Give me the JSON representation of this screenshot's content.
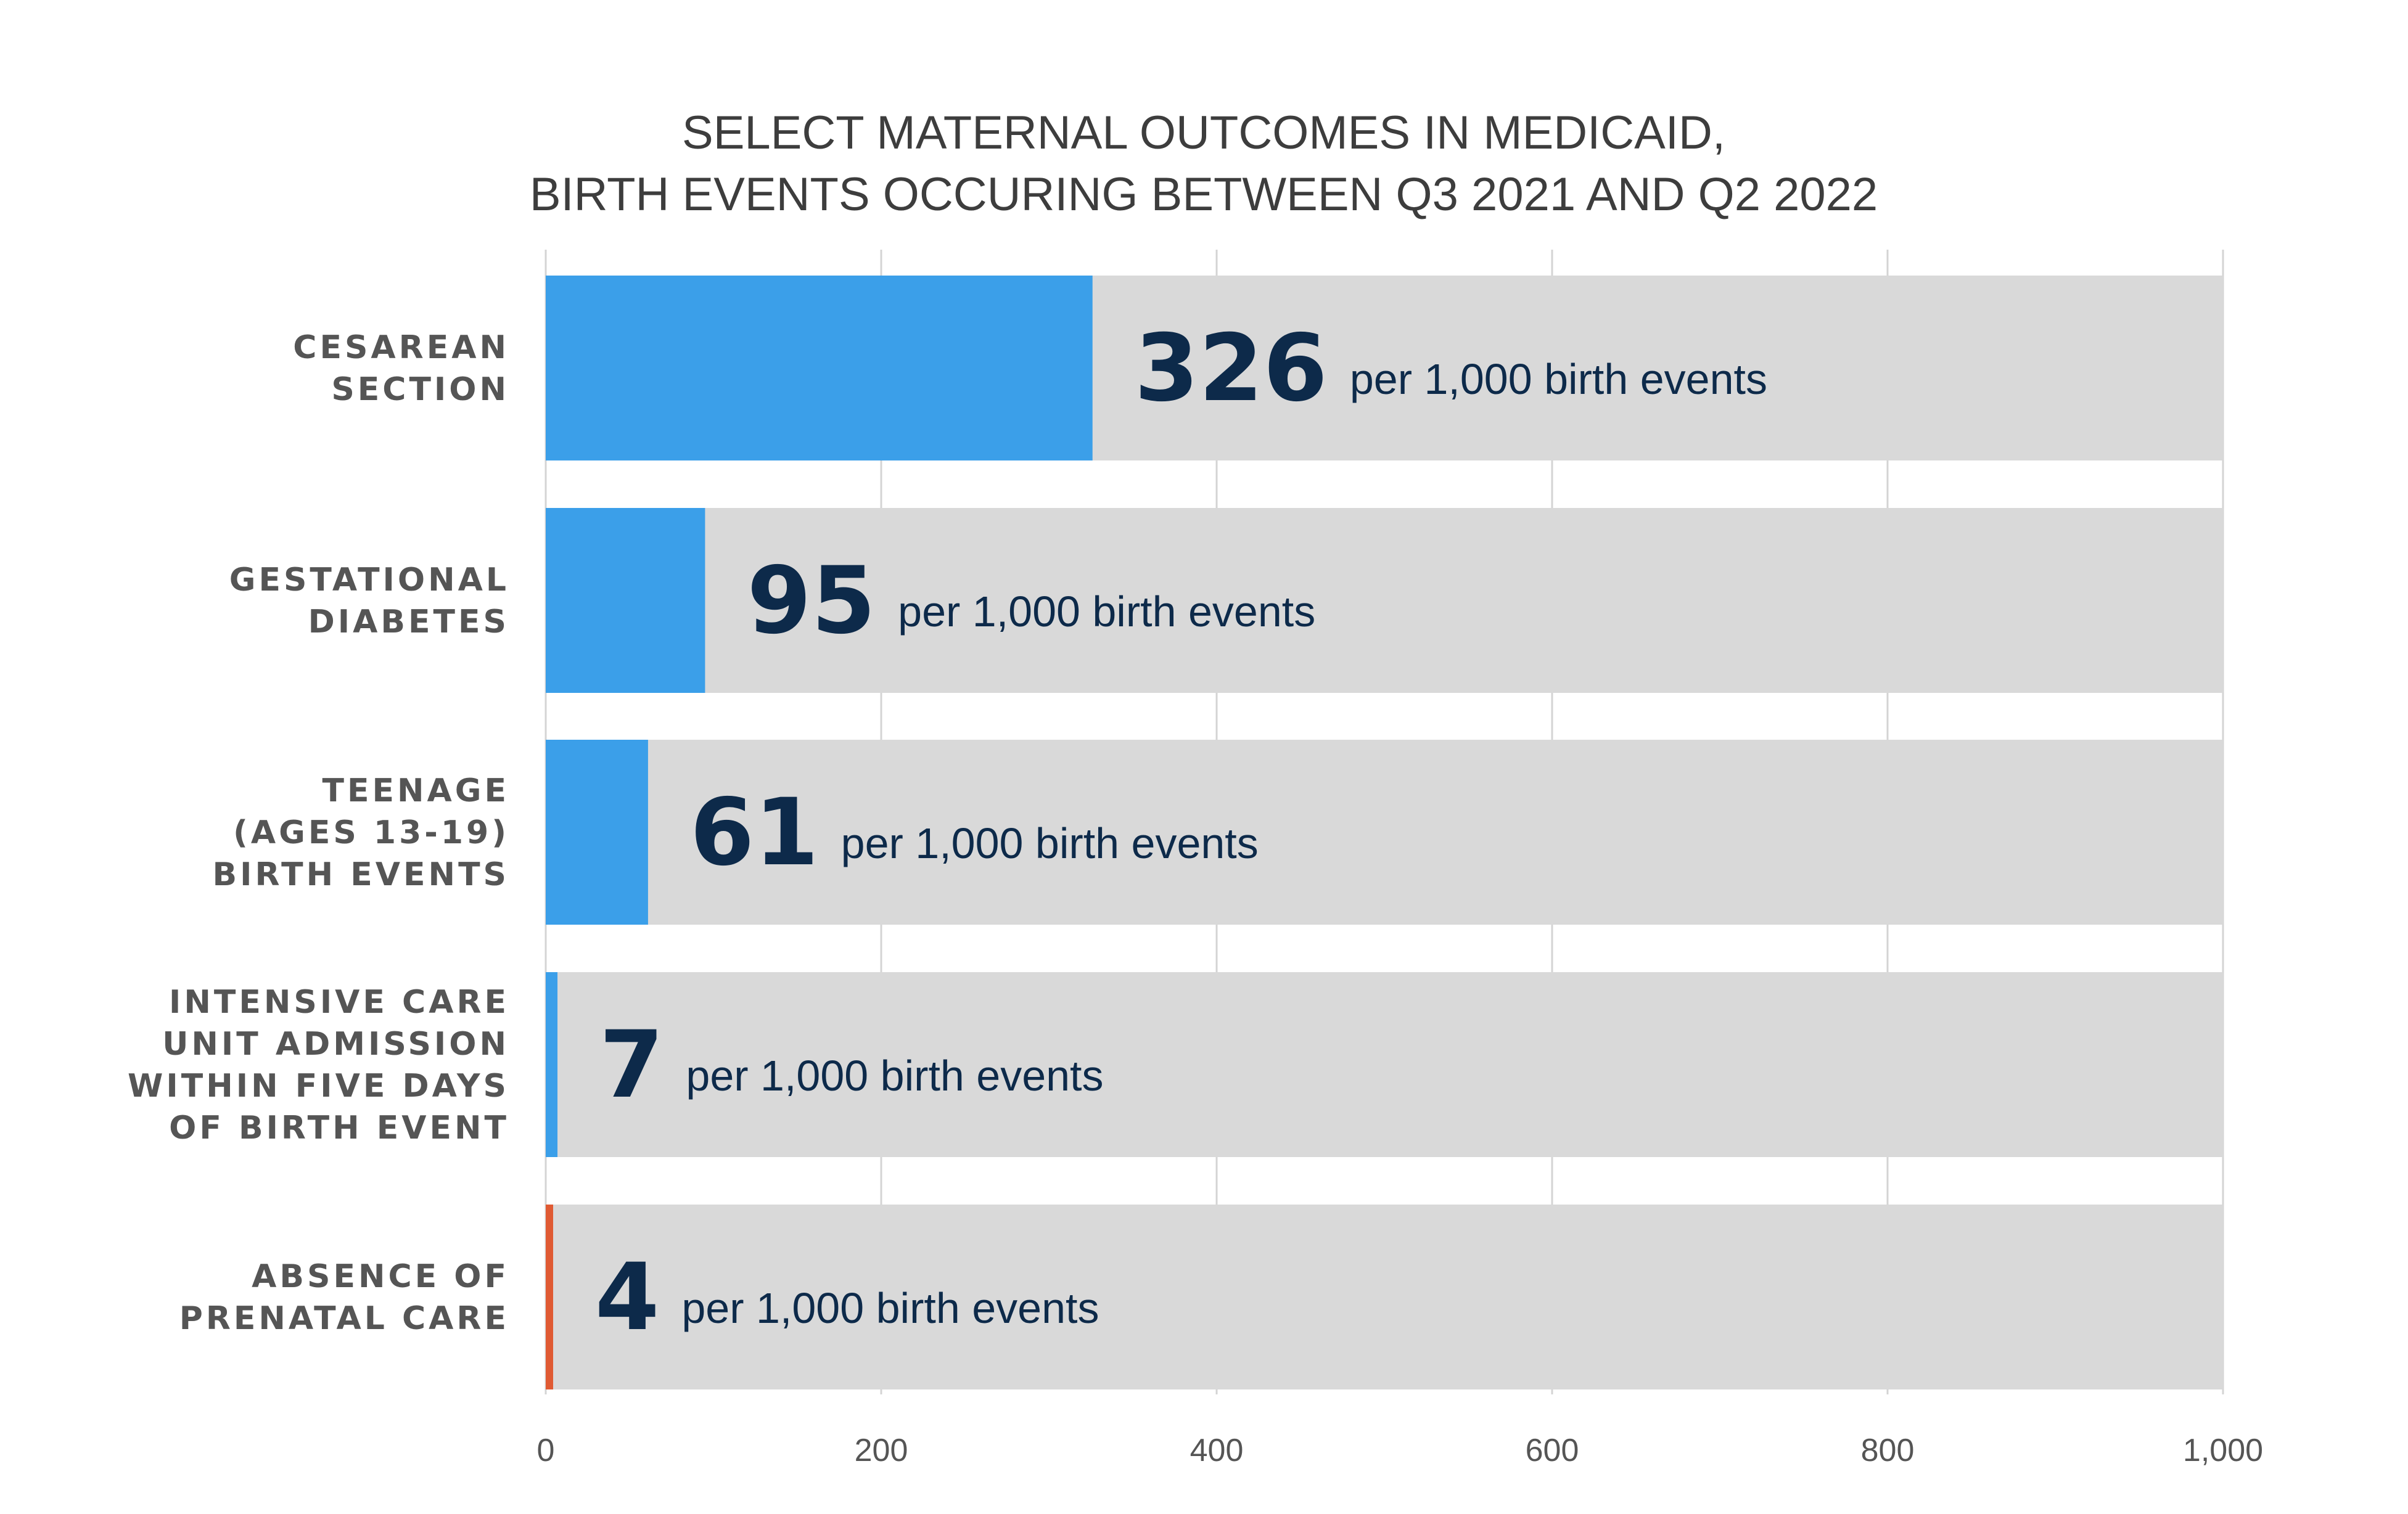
{
  "chart_data": {
    "type": "bar",
    "orientation": "horizontal",
    "title": [
      "SELECT MATERNAL OUTCOMES IN MEDICAID,",
      "BIRTH EVENTS OCCURING BETWEEN Q3 2021 AND Q2 2022"
    ],
    "categories": [
      [
        "CESAREAN",
        "SECTION"
      ],
      [
        "GESTATIONAL",
        "DIABETES"
      ],
      [
        "TEENAGE",
        "(AGES 13-19)",
        "BIRTH EVENTS"
      ],
      [
        "INTENSIVE CARE",
        "UNIT ADMISSION",
        "WITHIN FIVE DAYS",
        "OF BIRTH EVENT"
      ],
      [
        "ABSENCE OF",
        "PRENATAL CARE"
      ]
    ],
    "values": [
      326,
      95,
      61,
      7,
      4
    ],
    "value_labels": [
      "326",
      "95",
      "61",
      "7",
      "4"
    ],
    "value_unit": "per 1,000 birth events",
    "bar_colors": [
      "#3b9fe9",
      "#3b9fe9",
      "#3b9fe9",
      "#3b9fe9",
      "#e05a33"
    ],
    "track_color": "#d9d9d9",
    "label_color": "#0d2a4a",
    "xlim": [
      0,
      1000
    ],
    "xticks": [
      0,
      200,
      400,
      600,
      800,
      1000
    ],
    "xtick_labels": [
      "0",
      "200",
      "400",
      "600",
      "800",
      "1,000"
    ],
    "grid": true
  }
}
